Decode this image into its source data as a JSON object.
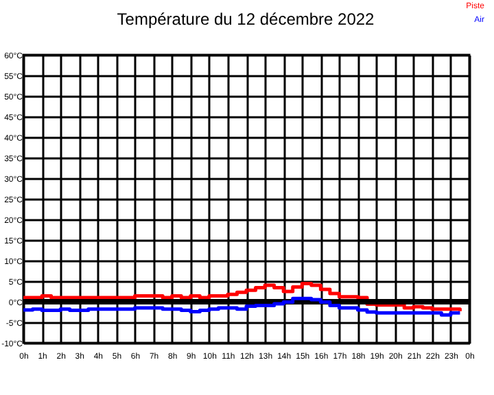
{
  "chart_data": {
    "type": "step",
    "title": "Température du 12 décembre 2022",
    "x": [
      "2022-12-12T00:00",
      "2022-12-12T00:30",
      "2022-12-12T01:00",
      "2022-12-12T01:30",
      "2022-12-12T02:00",
      "2022-12-12T02:30",
      "2022-12-12T03:00",
      "2022-12-12T03:30",
      "2022-12-12T04:00",
      "2022-12-12T04:30",
      "2022-12-12T05:00",
      "2022-12-12T05:30",
      "2022-12-12T06:00",
      "2022-12-12T06:30",
      "2022-12-12T07:00",
      "2022-12-12T07:30",
      "2022-12-12T08:00",
      "2022-12-12T08:30",
      "2022-12-12T09:00",
      "2022-12-12T09:30",
      "2022-12-12T10:00",
      "2022-12-12T10:30",
      "2022-12-12T11:00",
      "2022-12-12T11:30",
      "2022-12-12T12:00",
      "2022-12-12T12:30",
      "2022-12-12T13:00",
      "2022-12-12T13:30",
      "2022-12-12T14:00",
      "2022-12-12T14:30",
      "2022-12-12T15:00",
      "2022-12-12T15:30",
      "2022-12-12T16:00",
      "2022-12-12T16:30",
      "2022-12-12T17:00",
      "2022-12-12T17:30",
      "2022-12-12T18:00",
      "2022-12-12T18:30",
      "2022-12-12T19:00",
      "2022-12-12T19:30",
      "2022-12-12T20:00",
      "2022-12-12T20:30",
      "2022-12-12T21:00",
      "2022-12-12T21:30",
      "2022-12-12T22:00",
      "2022-12-12T22:30",
      "2022-12-12T23:00",
      "2022-12-12T23:30"
    ],
    "series": [
      {
        "name": "Piste",
        "color": "#ff0000",
        "values": [
          1.0,
          1.0,
          1.4,
          1.0,
          1.0,
          1.0,
          1.0,
          1.0,
          1.0,
          1.0,
          1.0,
          1.0,
          1.4,
          1.4,
          1.4,
          1.0,
          1.4,
          1.0,
          1.4,
          1.0,
          1.4,
          1.4,
          1.8,
          2.3,
          2.8,
          3.4,
          4.0,
          3.4,
          2.5,
          3.6,
          4.4,
          4.0,
          3.0,
          2.0,
          1.2,
          1.2,
          1.0,
          -0.6,
          -0.8,
          -0.8,
          -0.8,
          -1.5,
          -1.2,
          -1.5,
          -1.8,
          -1.8,
          -1.8,
          -2.3
        ]
      },
      {
        "name": "Air",
        "color": "#0000ff",
        "values": [
          -2.0,
          -1.8,
          -2.1,
          -2.1,
          -1.8,
          -2.1,
          -2.1,
          -1.8,
          -1.8,
          -1.8,
          -1.8,
          -1.8,
          -1.5,
          -1.5,
          -1.5,
          -1.8,
          -1.8,
          -2.1,
          -2.4,
          -2.1,
          -1.8,
          -1.5,
          -1.5,
          -1.8,
          -1.1,
          -0.9,
          -0.9,
          -0.5,
          -0.1,
          0.8,
          0.8,
          0.5,
          -0.1,
          -0.9,
          -1.5,
          -1.5,
          -2.0,
          -2.5,
          -2.7,
          -2.7,
          -2.7,
          -2.7,
          -2.7,
          -2.7,
          -2.7,
          -3.2,
          -2.7,
          -2.7
        ]
      }
    ],
    "xlim": [
      "2022-12-12T00:00",
      "2022-12-13T00:00"
    ],
    "xticks": [
      {
        "value": "2022-12-12T00:00",
        "label": "0h"
      },
      {
        "value": "2022-12-12T01:00",
        "label": "1h"
      },
      {
        "value": "2022-12-12T02:00",
        "label": "2h"
      },
      {
        "value": "2022-12-12T03:00",
        "label": "3h"
      },
      {
        "value": "2022-12-12T04:00",
        "label": "4h"
      },
      {
        "value": "2022-12-12T05:00",
        "label": "5h"
      },
      {
        "value": "2022-12-12T06:00",
        "label": "6h"
      },
      {
        "value": "2022-12-12T07:00",
        "label": "7h"
      },
      {
        "value": "2022-12-12T08:00",
        "label": "8h"
      },
      {
        "value": "2022-12-12T09:00",
        "label": "9h"
      },
      {
        "value": "2022-12-12T10:00",
        "label": "10h"
      },
      {
        "value": "2022-12-12T11:00",
        "label": "11h"
      },
      {
        "value": "2022-12-12T12:00",
        "label": "12h"
      },
      {
        "value": "2022-12-12T13:00",
        "label": "13h"
      },
      {
        "value": "2022-12-12T14:00",
        "label": "14h"
      },
      {
        "value": "2022-12-12T15:00",
        "label": "15h"
      },
      {
        "value": "2022-12-12T16:00",
        "label": "16h"
      },
      {
        "value": "2022-12-12T17:00",
        "label": "17h"
      },
      {
        "value": "2022-12-12T18:00",
        "label": "18h"
      },
      {
        "value": "2022-12-12T19:00",
        "label": "19h"
      },
      {
        "value": "2022-12-12T20:00",
        "label": "20h"
      },
      {
        "value": "2022-12-12T21:00",
        "label": "21h"
      },
      {
        "value": "2022-12-12T22:00",
        "label": "22h"
      },
      {
        "value": "2022-12-12T23:00",
        "label": "23h"
      },
      {
        "value": "2022-12-13T00:00",
        "label": "0h"
      }
    ],
    "ylim": [
      -10,
      60
    ],
    "yticks": [
      {
        "value": -10,
        "label": "-10°C"
      },
      {
        "value": -5,
        "label": "-5°C"
      },
      {
        "value": 0,
        "label": "0°C"
      },
      {
        "value": 5,
        "label": "5°C"
      },
      {
        "value": 10,
        "label": "10°C"
      },
      {
        "value": 15,
        "label": "15°C"
      },
      {
        "value": 20,
        "label": "20°C"
      },
      {
        "value": 25,
        "label": "25°C"
      },
      {
        "value": 30,
        "label": "30°C"
      },
      {
        "value": 35,
        "label": "35°C"
      },
      {
        "value": 40,
        "label": "40°C"
      },
      {
        "value": 45,
        "label": "45°C"
      },
      {
        "value": 50,
        "label": "50°C"
      },
      {
        "value": 55,
        "label": "55°C"
      },
      {
        "value": 60,
        "label": "60°C"
      }
    ],
    "ref_lines": [
      {
        "axis": "y",
        "value": 0,
        "color": "#000000"
      }
    ],
    "grid": true,
    "legend": "top right",
    "line_style": "solid"
  }
}
